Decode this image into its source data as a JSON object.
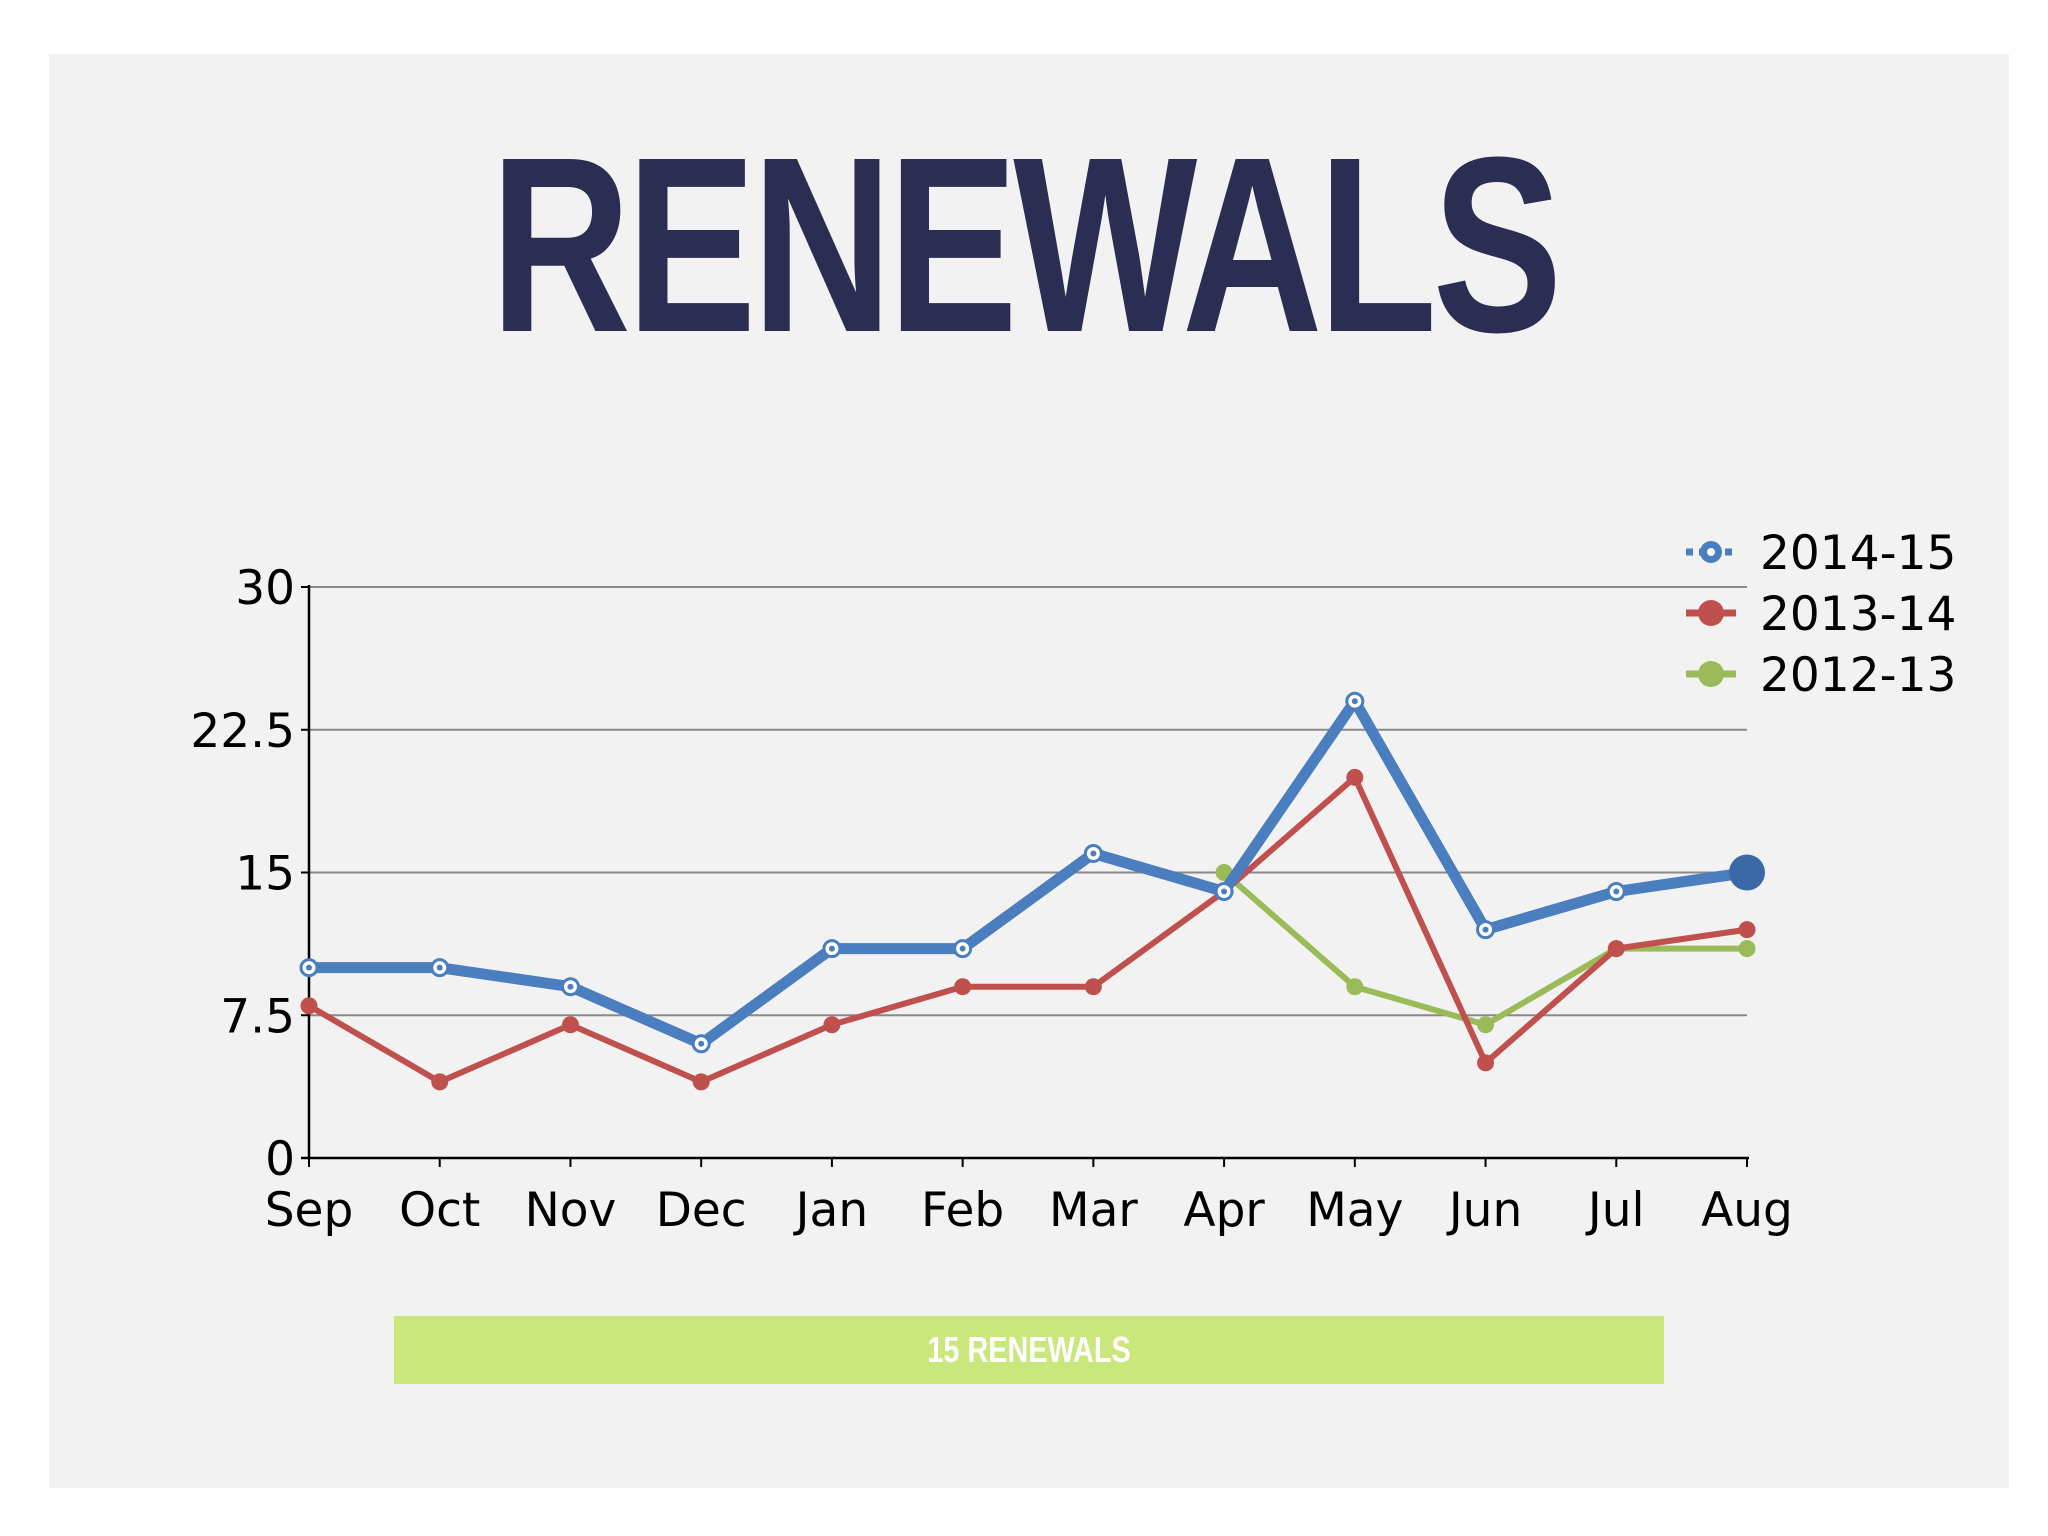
{
  "title": "RENEWALS",
  "banner": "15 RENEWALS",
  "chart_data": {
    "type": "line",
    "categories": [
      "Sep",
      "Oct",
      "Nov",
      "Dec",
      "Jan",
      "Feb",
      "Mar",
      "Apr",
      "May",
      "Jun",
      "Jul",
      "Aug"
    ],
    "ylim": [
      0,
      30
    ],
    "yticks": [
      "0",
      "7.5",
      "15",
      "22.5",
      "30"
    ],
    "grid": true,
    "legend_position": "top-right",
    "series": [
      {
        "name": "2014-15",
        "color": "#4a7ebf",
        "values": [
          10,
          10,
          9,
          6,
          11,
          11,
          16,
          14,
          24,
          12,
          14,
          15
        ]
      },
      {
        "name": "2013-14",
        "color": "#c0504d",
        "values": [
          8,
          4,
          7,
          4,
          7,
          9,
          9,
          14,
          20,
          5,
          11,
          12
        ]
      },
      {
        "name": "2012-13",
        "color": "#9bbb59",
        "values": [
          null,
          null,
          null,
          null,
          null,
          null,
          null,
          15,
          9,
          7,
          11,
          11
        ]
      }
    ]
  }
}
